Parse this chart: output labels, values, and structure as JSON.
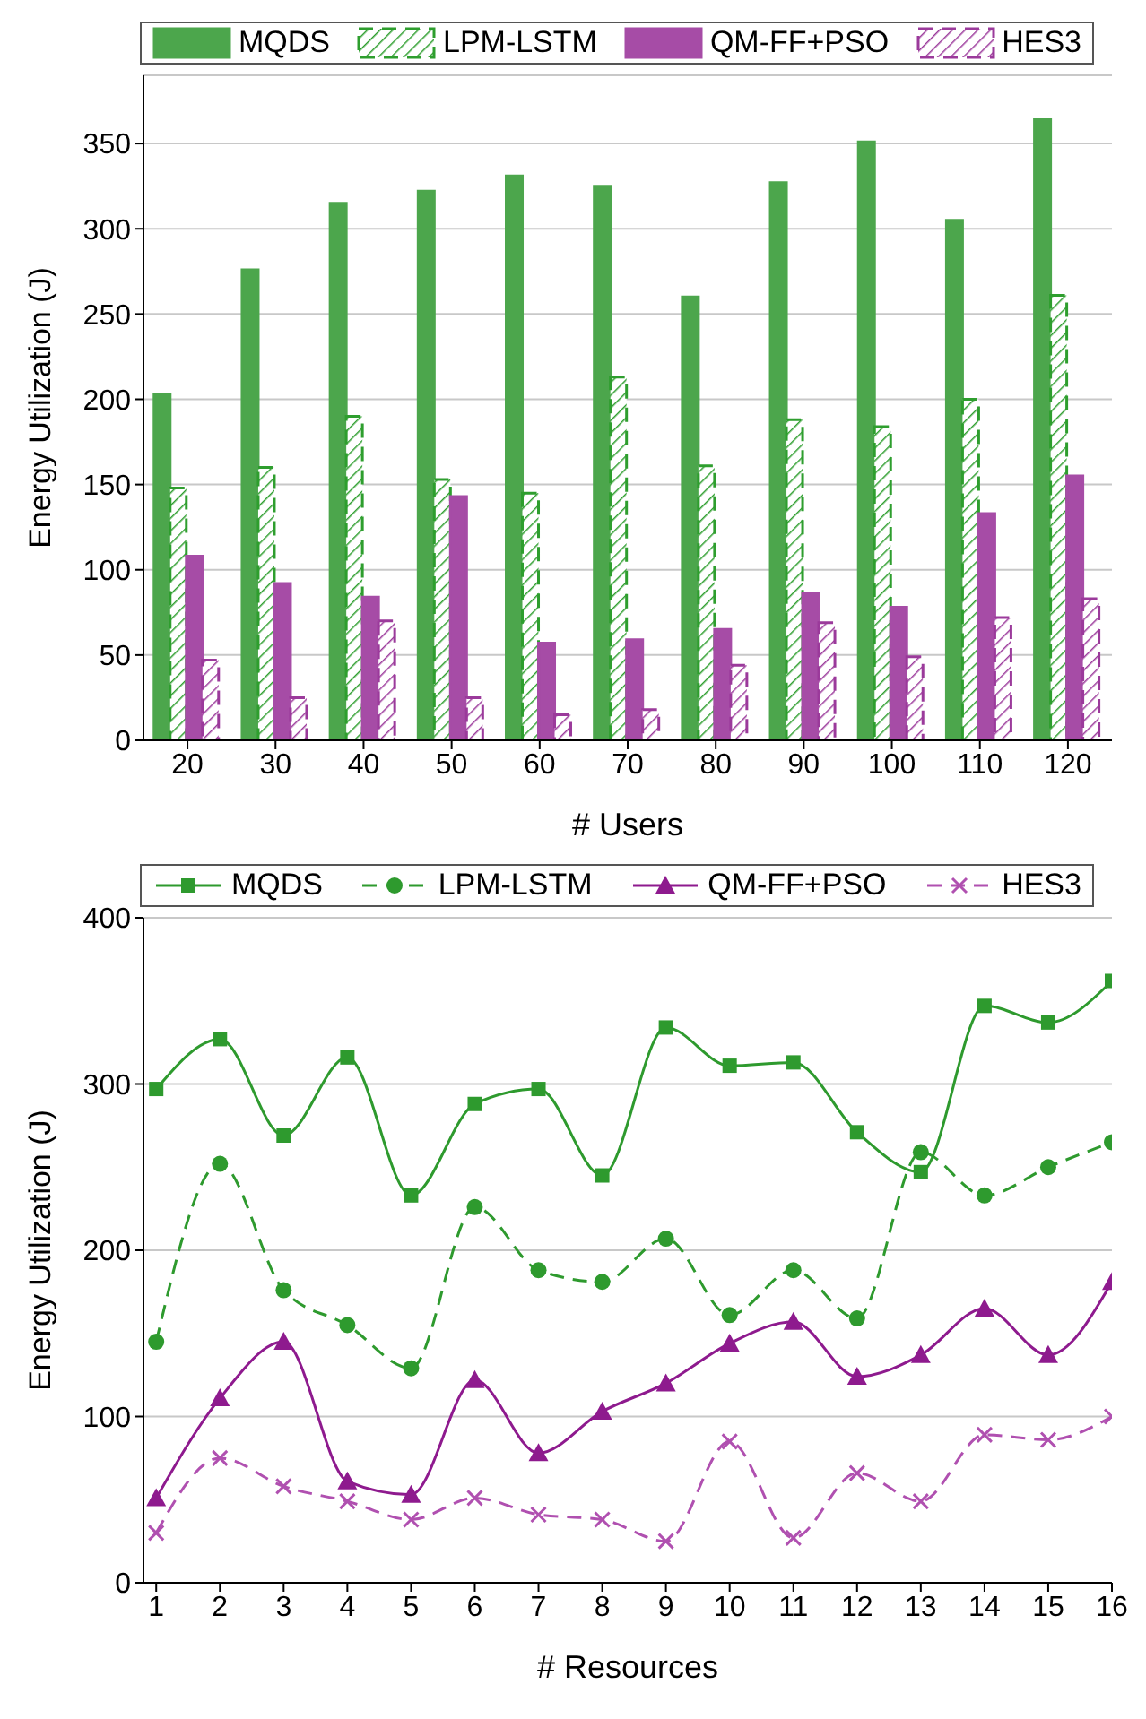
{
  "chart_data": [
    {
      "type": "bar",
      "xlabel": "# Users",
      "ylabel": "Energy Utilization (J)",
      "categories": [
        "20",
        "30",
        "40",
        "50",
        "60",
        "70",
        "80",
        "90",
        "100",
        "110",
        "120"
      ],
      "ylim": [
        0,
        390
      ],
      "yticks": [
        0,
        50,
        100,
        150,
        200,
        250,
        300,
        350
      ],
      "grid": "y",
      "legend": "top",
      "series": [
        {
          "name": "MQDS",
          "color": "#4ca64c",
          "line_style": "solid",
          "values": [
            203,
            276,
            315,
            322,
            331,
            325,
            260,
            327,
            351,
            305,
            364
          ]
        },
        {
          "name": "LPM-LSTM",
          "color": "#2e9e2e",
          "line_style": "dashed",
          "values": [
            148,
            160,
            190,
            153,
            145,
            213,
            161,
            188,
            184,
            200,
            261
          ]
        },
        {
          "name": "QM-FF+PSO",
          "color": "#a64ca6",
          "line_style": "solid",
          "values": [
            108,
            92,
            84,
            143,
            57,
            59,
            65,
            86,
            78,
            133,
            155
          ]
        },
        {
          "name": "HES3",
          "color": "#9b3a9b",
          "line_style": "dashed",
          "values": [
            47,
            25,
            70,
            25,
            15,
            18,
            44,
            69,
            49,
            72,
            83
          ]
        }
      ]
    },
    {
      "type": "line",
      "xlabel": "# Resources",
      "ylabel": "Energy Utilization (J)",
      "x": [
        1,
        2,
        3,
        4,
        5,
        6,
        7,
        8,
        9,
        10,
        11,
        12,
        13,
        14,
        15,
        16
      ],
      "xlim": [
        0.8,
        16
      ],
      "xticks": [
        1,
        2,
        3,
        4,
        5,
        6,
        7,
        8,
        9,
        10,
        11,
        12,
        13,
        14,
        15,
        16
      ],
      "ylim": [
        0,
        400
      ],
      "yticks": [
        0,
        100,
        200,
        300,
        400
      ],
      "grid": "y",
      "legend": "top",
      "series": [
        {
          "name": "MQDS",
          "color": "#2e9a2e",
          "marker": "square",
          "line_style": "solid",
          "values": [
            297,
            327,
            269,
            316,
            233,
            288,
            297,
            245,
            334,
            311,
            313,
            271,
            247,
            347,
            337,
            362
          ]
        },
        {
          "name": "LPM-LSTM",
          "color": "#2e9a2e",
          "marker": "circle",
          "line_style": "dashed",
          "values": [
            145,
            252,
            176,
            155,
            129,
            226,
            188,
            181,
            207,
            161,
            188,
            159,
            259,
            233,
            250,
            265
          ]
        },
        {
          "name": "QM-FF+PSO",
          "color": "#8e1a8e",
          "marker": "triangle",
          "line_style": "solid",
          "values": [
            51,
            111,
            145,
            61,
            53,
            122,
            78,
            103,
            120,
            144,
            157,
            124,
            137,
            165,
            137,
            181
          ]
        },
        {
          "name": "HES3",
          "color": "#b050b0",
          "marker": "cross",
          "line_style": "dashed",
          "values": [
            30,
            75,
            58,
            49,
            38,
            51,
            41,
            38,
            25,
            85,
            27,
            66,
            49,
            89,
            86,
            100
          ]
        }
      ]
    }
  ]
}
